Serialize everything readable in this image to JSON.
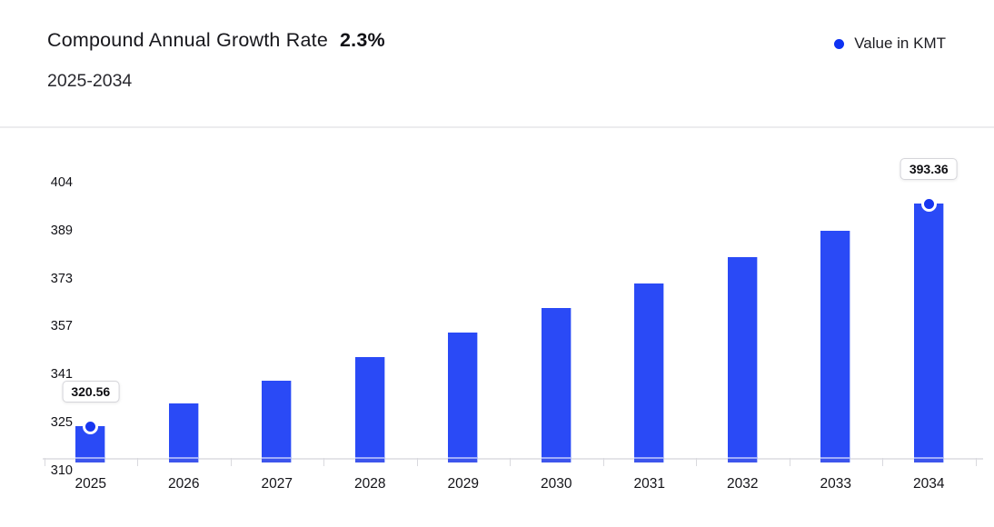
{
  "header": {
    "title": "Compound Annual Growth Rate",
    "cagr_value": "2.3%",
    "subtitle": "2025-2034",
    "legend": {
      "label": "Value in KMT",
      "dot_color": "#0e32f2"
    }
  },
  "chart_data": {
    "type": "bar",
    "title": "Compound Annual Growth Rate 2.3% 2025-2034",
    "categories": [
      "2025",
      "2026",
      "2027",
      "2028",
      "2029",
      "2030",
      "2031",
      "2032",
      "2033",
      "2034"
    ],
    "series": [
      {
        "name": "Value in KMT",
        "values": [
          320.56,
          327.93,
          335.47,
          343.19,
          351.08,
          359.16,
          367.42,
          375.87,
          384.51,
          393.36
        ]
      }
    ],
    "point_labels": [
      {
        "index": 0,
        "text": "320.56"
      },
      {
        "index": 9,
        "text": "393.36"
      }
    ],
    "y_tick_labels": [
      "404",
      "389",
      "373",
      "357",
      "341",
      "325",
      "310"
    ],
    "ylim": [
      310,
      404
    ],
    "xlabel": "",
    "ylabel": "",
    "grid": false,
    "legend_position": "top-right",
    "bar_color": "#2a4af6",
    "marker_color": "#1736f0",
    "axis_line_color": "#e4e4e8"
  }
}
